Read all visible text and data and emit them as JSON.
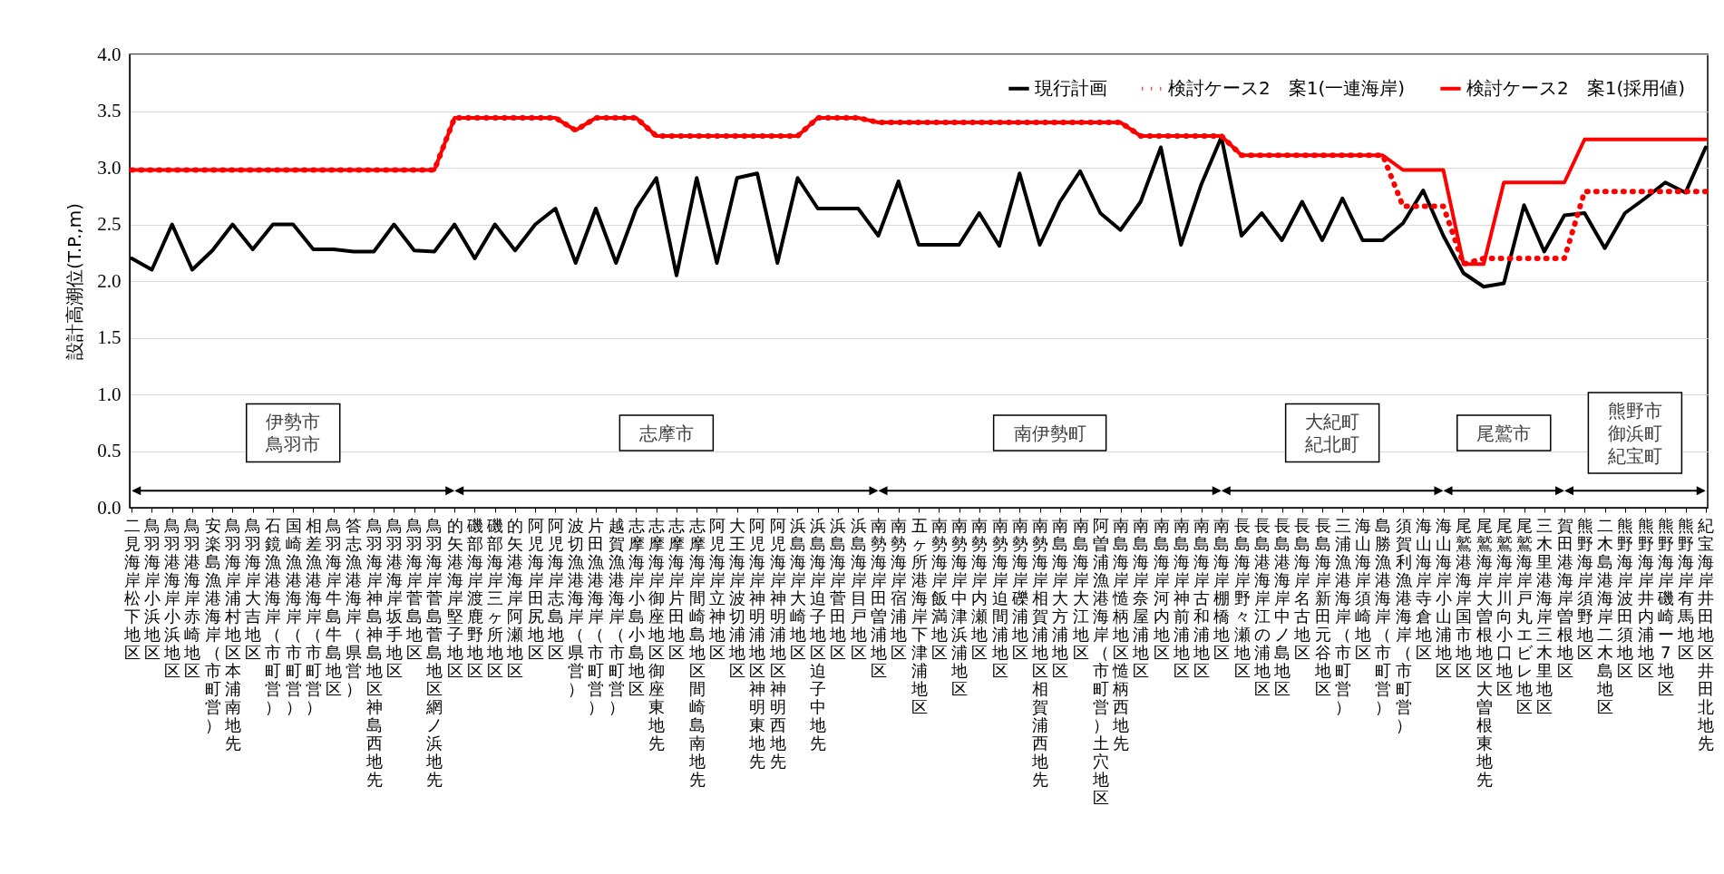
{
  "chart_data": {
    "type": "line",
    "ylabel": "設計高潮位(T.P.,m)",
    "categories": [
      "二見海岸松下地区",
      "鳥羽海岸小浜地区",
      "鳥羽港海岸小浜地区",
      "鳥羽港海岸赤崎地区",
      "安楽島漁港海岸（市町営）",
      "鳥羽海岸浦村地区本浦南地先",
      "鳥羽海岸大吉地区",
      "石鏡漁港海岸（市町営）",
      "国崎漁港海岸（市町営）",
      "相差漁港海岸（市町営）",
      "鳥羽海岸牛島牛島地区",
      "答志漁港海岸（県営）",
      "鳥羽海岸神島神島地区神島西地先",
      "鳥羽港海岸坂手地区",
      "鳥羽海岸菅島地区",
      "鳥羽海岸菅島菅島地区網ノ浜地先",
      "的矢港海岸堅子地区",
      "磯部海岸渡鹿野地区",
      "磯部海岸三ヶ所地区",
      "的矢港海岸阿瀬地区",
      "阿児海岸田尻地区",
      "阿児海岸志島地区",
      "波切漁港海岸（県営）",
      "片田漁港海岸（市町営）",
      "越賀漁港海岸（市町営）",
      "志摩海岸小島小島地区",
      "志摩海岸御座地区御座東地先",
      "志摩海岸片田地区",
      "志摩海岸間崎島地区間崎島南地先",
      "阿児海岸立神地区",
      "大王海岸波切浦地区",
      "阿児海岸神明浦地区神明東地先",
      "阿児海岸神明浦地区神明西地先",
      "浜島海岸大崎地区",
      "浜島海岸迫子地区迫子中地先",
      "浜島海岸菅田地区",
      "浜島海岸目戸地区",
      "南勢海岸田曽浦地区",
      "南勢海岸宿浦地区",
      "五ヶ所港海岸下津浦地区",
      "南勢海岸飯満地区",
      "南勢海岸中津浜浦地区",
      "南勢海岸内瀬地区",
      "南勢海岸迫間浦地区",
      "南勢海岸礫浦地区",
      "南勢海岸相賀浦地区相賀浦西地先",
      "南島海岸大方浦地区",
      "南島海岸大江地区",
      "阿曽浦漁港海岸（市町営）土穴地区",
      "南島海岸慥柄地区慥柄西地先",
      "南島海岸奈屋浦地区",
      "南島海岸河内地区",
      "南島海岸神前浦地区",
      "南島海岸古和浦地区",
      "南島海岸棚橋地区",
      "長島海岸野々瀬地区",
      "長島港海岸江の浦地区",
      "長島港海岸中ノ島地区",
      "長島海岸名古地区",
      "長島海岸新田元谷地区",
      "三浦漁港海岸（市町営）",
      "海山海岸須崎地区",
      "島勝漁港海岸（市町営）",
      "須賀利漁港海岸（市町営）",
      "海山海岸寺倉地区",
      "海山海岸小山浦地区",
      "尾鷲港海岸国市地区",
      "尾鷲海岸大曽根地区大曽根東地先",
      "尾鷲海岸川向小口地区",
      "尾鷲海岸戸丸エビレ地区",
      "三木里港海岸三木里地区",
      "賀田港海岸曽根地区",
      "熊野海岸須野地区",
      "二木島港海岸二木島地区",
      "熊野海岸波田須地区",
      "熊野海岸井内浦地区",
      "熊野海岸磯崎ー7地区",
      "熊野海岸有馬地区",
      "紀宝海岸井田地区井田北地先"
    ],
    "series": [
      {
        "name": "現行計画",
        "color": "#000000",
        "line_style": "solid",
        "values": [
          2.2,
          2.1,
          2.5,
          2.1,
          2.27,
          2.5,
          2.28,
          2.5,
          2.5,
          2.28,
          2.28,
          2.26,
          2.26,
          2.5,
          2.27,
          2.26,
          2.5,
          2.2,
          2.5,
          2.27,
          2.5,
          2.64,
          2.16,
          2.64,
          2.16,
          2.64,
          2.91,
          2.05,
          2.91,
          2.16,
          2.91,
          2.95,
          2.16,
          2.91,
          2.64,
          2.64,
          2.64,
          2.4,
          2.88,
          2.32,
          2.32,
          2.32,
          2.6,
          2.31,
          2.95,
          2.32,
          2.7,
          2.97,
          2.6,
          2.45,
          2.7,
          3.18,
          2.32,
          2.85,
          3.27,
          2.4,
          2.6,
          2.36,
          2.7,
          2.36,
          2.73,
          2.36,
          2.36,
          2.51,
          2.8,
          2.4,
          2.07,
          1.95,
          1.98,
          2.67,
          2.26,
          2.58,
          2.6,
          2.29,
          2.6,
          2.73,
          2.87,
          2.78,
          3.18
        ]
      },
      {
        "name": "検討ケース2　案1(一連海岸)",
        "color": "#ff0000",
        "line_style": "dotted",
        "values": [
          2.98,
          2.98,
          2.98,
          2.98,
          2.98,
          2.98,
          2.98,
          2.98,
          2.98,
          2.98,
          2.98,
          2.98,
          2.98,
          2.98,
          2.98,
          2.98,
          3.44,
          3.44,
          3.44,
          3.44,
          3.44,
          3.44,
          3.33,
          3.44,
          3.44,
          3.44,
          3.28,
          3.28,
          3.28,
          3.28,
          3.28,
          3.28,
          3.28,
          3.28,
          3.44,
          3.44,
          3.44,
          3.4,
          3.4,
          3.4,
          3.4,
          3.4,
          3.4,
          3.4,
          3.4,
          3.4,
          3.4,
          3.4,
          3.4,
          3.4,
          3.28,
          3.28,
          3.28,
          3.28,
          3.28,
          3.11,
          3.11,
          3.11,
          3.11,
          3.11,
          3.11,
          3.11,
          3.11,
          2.66,
          2.66,
          2.66,
          2.15,
          2.2,
          2.2,
          2.2,
          2.2,
          2.2,
          2.79,
          2.79,
          2.79,
          2.79,
          2.79,
          2.79,
          2.79
        ]
      },
      {
        "name": "検討ケース2　案1(採用値)",
        "color": "#ff0000",
        "line_style": "solid",
        "values": [
          2.98,
          2.98,
          2.98,
          2.98,
          2.98,
          2.98,
          2.98,
          2.98,
          2.98,
          2.98,
          2.98,
          2.98,
          2.98,
          2.98,
          2.98,
          2.98,
          3.44,
          3.44,
          3.44,
          3.44,
          3.44,
          3.44,
          3.33,
          3.44,
          3.44,
          3.44,
          3.28,
          3.28,
          3.28,
          3.28,
          3.28,
          3.28,
          3.28,
          3.28,
          3.44,
          3.44,
          3.44,
          3.4,
          3.4,
          3.4,
          3.4,
          3.4,
          3.4,
          3.4,
          3.4,
          3.4,
          3.4,
          3.4,
          3.4,
          3.4,
          3.28,
          3.28,
          3.28,
          3.28,
          3.28,
          3.11,
          3.11,
          3.11,
          3.11,
          3.11,
          3.11,
          3.11,
          3.11,
          2.98,
          2.98,
          2.98,
          2.15,
          2.15,
          2.87,
          2.87,
          2.87,
          2.87,
          3.25,
          3.25,
          3.25,
          3.25,
          3.25,
          3.25,
          3.25
        ]
      }
    ],
    "ylim": [
      0,
      4
    ],
    "yticks": [
      {
        "value": 0,
        "label": "0.0"
      },
      {
        "value": 0.5,
        "label": "0.5"
      },
      {
        "value": 1,
        "label": "1.0"
      },
      {
        "value": 1.5,
        "label": "1.5"
      },
      {
        "value": 2,
        "label": "2.0"
      },
      {
        "value": 2.5,
        "label": "2.5"
      },
      {
        "value": 3,
        "label": "3.0"
      },
      {
        "value": 3.5,
        "label": "3.5"
      },
      {
        "value": 4,
        "label": "4.0"
      }
    ],
    "grid": "y",
    "legend": "top right",
    "annotations": [
      "伊勢市鳥羽市",
      "志摩市",
      "南伊勢町",
      "大紀町紀北町",
      "尾鷲市",
      "熊野市御浜町紀宝町"
    ]
  }
}
